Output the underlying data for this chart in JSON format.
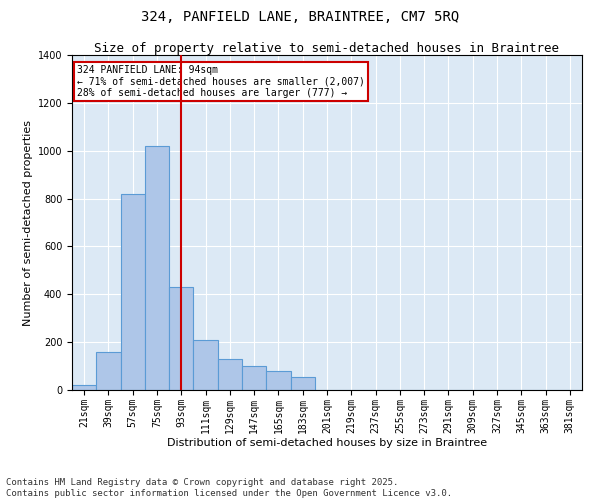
{
  "title_line1": "324, PANFIELD LANE, BRAINTREE, CM7 5RQ",
  "title_line2": "Size of property relative to semi-detached houses in Braintree",
  "xlabel": "Distribution of semi-detached houses by size in Braintree",
  "ylabel": "Number of semi-detached properties",
  "categories": [
    "21sqm",
    "39sqm",
    "57sqm",
    "75sqm",
    "93sqm",
    "111sqm",
    "129sqm",
    "147sqm",
    "165sqm",
    "183sqm",
    "201sqm",
    "219sqm",
    "237sqm",
    "255sqm",
    "273sqm",
    "291sqm",
    "309sqm",
    "327sqm",
    "345sqm",
    "363sqm",
    "381sqm"
  ],
  "values": [
    20,
    160,
    820,
    1020,
    430,
    210,
    130,
    100,
    80,
    55,
    0,
    0,
    0,
    0,
    0,
    0,
    0,
    0,
    0,
    0,
    0
  ],
  "bar_color": "#aec6e8",
  "bar_edge_color": "#5b9bd5",
  "red_line_x": 4.0,
  "annotation_title": "324 PANFIELD LANE: 94sqm",
  "annotation_line2": "← 71% of semi-detached houses are smaller (2,007)",
  "annotation_line3": "28% of semi-detached houses are larger (777) →",
  "annotation_box_color": "#ffffff",
  "annotation_box_edge": "#cc0000",
  "red_line_color": "#cc0000",
  "background_color": "#dce9f5",
  "ylim": [
    0,
    1400
  ],
  "yticks": [
    0,
    200,
    400,
    600,
    800,
    1000,
    1200,
    1400
  ],
  "footer_line1": "Contains HM Land Registry data © Crown copyright and database right 2025.",
  "footer_line2": "Contains public sector information licensed under the Open Government Licence v3.0.",
  "title_fontsize": 10,
  "subtitle_fontsize": 9,
  "axis_label_fontsize": 8,
  "tick_fontsize": 7,
  "annotation_fontsize": 7,
  "footer_fontsize": 6.5
}
